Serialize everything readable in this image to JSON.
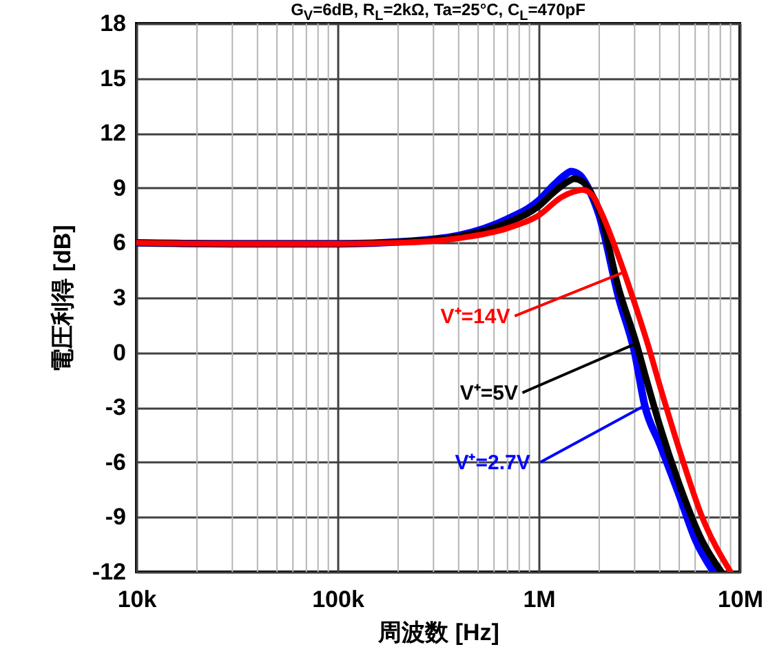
{
  "chart_data": {
    "type": "line",
    "title": "G$_{V}$=6dB, R$_{L}$=2kΩ, Ta=25°C, C$_{L}$=470pF",
    "xlabel": "周波数 [Hz]",
    "ylabel": "電圧利得 [dB]",
    "log": "x",
    "grid": true,
    "line_style": "solid",
    "marker": "none",
    "xlim": [
      10000,
      10000000
    ],
    "xticks": [
      {
        "value": 10000,
        "label": "10k"
      },
      {
        "value": 100000,
        "label": "100k"
      },
      {
        "value": 1000000,
        "label": "1M"
      },
      {
        "value": 10000000,
        "label": "10M"
      }
    ],
    "ylim": [
      -12,
      18
    ],
    "yticks": [
      -12,
      -9,
      -6,
      -3,
      0,
      3,
      6,
      9,
      12,
      15,
      18
    ],
    "series": [
      {
        "name": "V⁺=2.7V",
        "color": "#0000ff",
        "x": [
          10000,
          30000,
          100000,
          200000,
          400000,
          700000,
          1000000,
          1200000,
          1350000,
          1450000,
          1600000,
          1800000,
          2000000,
          2500000,
          3000000,
          3370000,
          4000000,
          5000000,
          6000000,
          7400000
        ],
        "values": [
          6.0,
          5.95,
          5.95,
          6.05,
          6.4,
          7.3,
          8.3,
          9.2,
          9.7,
          9.9,
          9.7,
          8.8,
          7.5,
          3.0,
          0.0,
          -2.9,
          -5.0,
          -7.8,
          -10.2,
          -12
        ]
      },
      {
        "name": "V⁺=5V",
        "color": "#000000",
        "x": [
          10000,
          30000,
          100000,
          200000,
          400000,
          700000,
          1000000,
          1200000,
          1400000,
          1500000,
          1650000,
          1850000,
          2000000,
          2500000,
          3060000,
          3500000,
          4000000,
          5000000,
          6500000,
          8100000
        ],
        "values": [
          6.0,
          5.95,
          5.95,
          6.05,
          6.35,
          7.1,
          8.0,
          8.8,
          9.35,
          9.5,
          9.35,
          8.6,
          7.8,
          3.5,
          0.5,
          -1.8,
          -4.0,
          -7.2,
          -10.3,
          -12
        ]
      },
      {
        "name": "V⁺=14V",
        "color": "#ff0000",
        "x": [
          10000,
          30000,
          100000,
          200000,
          400000,
          700000,
          1000000,
          1300000,
          1500000,
          1650000,
          1850000,
          2000000,
          2660000,
          3000000,
          3500000,
          4000000,
          5000000,
          6500000,
          9000000
        ],
        "values": [
          6.0,
          5.95,
          5.95,
          6.0,
          6.25,
          6.8,
          7.5,
          8.5,
          8.8,
          8.9,
          8.6,
          7.9,
          4.4,
          2.7,
          0.4,
          -1.8,
          -5.3,
          -9.0,
          -12
        ]
      }
    ]
  }
}
